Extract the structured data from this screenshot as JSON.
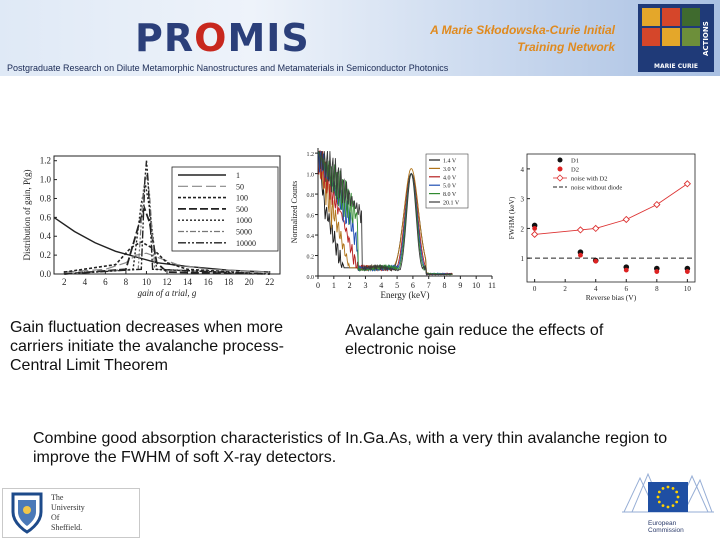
{
  "header": {
    "logo_text_1": "PR",
    "logo_text_o": "O",
    "logo_text_2": "MIS",
    "network_line1": "A Marie Skłodowska-Curie Initial",
    "network_line2": "Training Network",
    "subtitle": "Postgraduate Research on Dilute Metamorphic Nanostructures and Metamaterials in Semiconductor Photonics",
    "mc_label": "MARIE CURIE",
    "mc_side": "ACTIONS"
  },
  "colors": {
    "logo_blue": "#2b3f7a",
    "logo_red": "#c8281e",
    "network_orange": "#e08a1e",
    "eu_blue": "#1f4fa3",
    "eu_star": "#ffd200"
  },
  "chart_data": [
    {
      "type": "line",
      "ylabel": "Distribution of gain, P(g)",
      "xlabel": "gain of a trial, g",
      "x_ticks": [
        "2",
        "4",
        "6",
        "8",
        "10",
        "12",
        "14",
        "16",
        "18",
        "20",
        "22"
      ],
      "y_ticks": [
        "0.0",
        "0.2",
        "0.4",
        "0.6",
        "0.8",
        "1.0",
        "1.2"
      ],
      "xlim": [
        1,
        23
      ],
      "ylim": [
        0,
        1.25
      ],
      "legend": [
        "1",
        "50",
        "100",
        "500",
        "1000",
        "5000",
        "10000"
      ],
      "series": [
        {
          "name": "1",
          "points": [
            [
              1,
              0.6
            ],
            [
              3,
              0.45
            ],
            [
              5,
              0.33
            ],
            [
              7,
              0.24
            ],
            [
              9,
              0.18
            ],
            [
              11,
              0.12
            ],
            [
              14,
              0.08
            ],
            [
              18,
              0.04
            ],
            [
              22,
              0.02
            ]
          ]
        },
        {
          "name": "50",
          "points": [
            [
              2,
              0.02
            ],
            [
              6,
              0.05
            ],
            [
              8,
              0.12
            ],
            [
              9,
              0.2
            ],
            [
              10,
              0.22
            ],
            [
              11,
              0.18
            ],
            [
              13,
              0.1
            ],
            [
              16,
              0.05
            ],
            [
              22,
              0.02
            ]
          ]
        },
        {
          "name": "100",
          "points": [
            [
              2,
              0.02
            ],
            [
              7,
              0.1
            ],
            [
              8.5,
              0.28
            ],
            [
              9.5,
              0.34
            ],
            [
              10.5,
              0.28
            ],
            [
              12,
              0.12
            ],
            [
              14,
              0.05
            ],
            [
              20,
              0.01
            ]
          ]
        },
        {
          "name": "500",
          "points": [
            [
              2,
              0.0
            ],
            [
              8,
              0.05
            ],
            [
              9.2,
              0.5
            ],
            [
              9.8,
              0.7
            ],
            [
              10.3,
              0.55
            ],
            [
              11,
              0.12
            ],
            [
              12,
              0.02
            ],
            [
              22,
              0.0
            ]
          ]
        },
        {
          "name": "1000",
          "points": [
            [
              2,
              0.0
            ],
            [
              8.7,
              0.05
            ],
            [
              9.5,
              0.75
            ],
            [
              9.9,
              0.95
            ],
            [
              10.3,
              0.7
            ],
            [
              11,
              0.05
            ],
            [
              22,
              0.0
            ]
          ]
        },
        {
          "name": "5000",
          "points": [
            [
              2,
              0.0
            ],
            [
              9.2,
              0.05
            ],
            [
              9.7,
              0.9
            ],
            [
              10,
              1.05
            ],
            [
              10.3,
              0.85
            ],
            [
              10.8,
              0.05
            ],
            [
              22,
              0.0
            ]
          ]
        },
        {
          "name": "10000",
          "points": [
            [
              2,
              0.0
            ],
            [
              9.5,
              0.05
            ],
            [
              9.85,
              1.0
            ],
            [
              10,
              1.2
            ],
            [
              10.15,
              1.0
            ],
            [
              10.6,
              0.05
            ],
            [
              22,
              0.0
            ]
          ]
        }
      ]
    },
    {
      "type": "line",
      "ylabel": "Normalized Counts",
      "xlabel": "Energy (keV)",
      "x_ticks": [
        "0",
        "1",
        "2",
        "3",
        "4",
        "5",
        "6",
        "7",
        "8",
        "9",
        "10",
        "11"
      ],
      "y_ticks": [
        "0.0",
        "0.2",
        "0.4",
        "0.6",
        "0.8",
        "1.0",
        "1.2"
      ],
      "xlim": [
        0,
        11
      ],
      "ylim": [
        0,
        1.25
      ],
      "legend": [
        "1.4 V",
        "3.0 V",
        "4.0 V",
        "5.0 V",
        "8.0 V",
        "20.1 V"
      ],
      "series_colors": [
        "#1a1a1a",
        "#b0741a",
        "#b61f1f",
        "#1f4fb3",
        "#2f8a2f",
        "#3a3a3a"
      ],
      "peak_keV": 5.9
    },
    {
      "type": "scatter",
      "ylabel": "FWHM (keV)",
      "xlabel": "Reverse bias (V)",
      "x_ticks": [
        "0",
        "2",
        "4",
        "6",
        "8",
        "10"
      ],
      "y_ticks": [
        "1",
        "2",
        "3",
        "4"
      ],
      "xlim": [
        -0.5,
        10.5
      ],
      "ylim": [
        0.2,
        4.5
      ],
      "legend": [
        "D1",
        "D2",
        "noise with D2",
        "noise without diode"
      ],
      "series": [
        {
          "name": "D1",
          "x": [
            0,
            3,
            4,
            6,
            8,
            10
          ],
          "y": [
            2.1,
            1.2,
            0.92,
            0.7,
            0.65,
            0.65
          ]
        },
        {
          "name": "D2",
          "x": [
            0,
            3,
            4,
            6,
            8,
            10
          ],
          "y": [
            2.0,
            1.1,
            0.9,
            0.6,
            0.55,
            0.55
          ]
        },
        {
          "name": "noise with D2",
          "x": [
            0,
            3,
            4,
            6,
            8,
            10
          ],
          "y": [
            1.8,
            1.95,
            2.0,
            2.3,
            2.8,
            3.5
          ]
        },
        {
          "name": "noise without diode",
          "x": [
            -0.5,
            10.5
          ],
          "y": [
            1.0,
            1.0
          ]
        }
      ]
    }
  ],
  "captions": {
    "left": "Gain fluctuation decreases when more carriers initiate the avalanche process- Central Limit Theorem",
    "right": "Avalanche gain reduce the effects of electronic noise",
    "bottom": "Combine good absorption characteristics of In.Ga.As, with a very thin avalanche region to improve the FWHM of soft X-ray detectors."
  },
  "footer": {
    "sheffield_lines": [
      "The",
      "University",
      "Of",
      "Sheffield."
    ],
    "ec_lines": [
      "European",
      "Commission"
    ]
  }
}
